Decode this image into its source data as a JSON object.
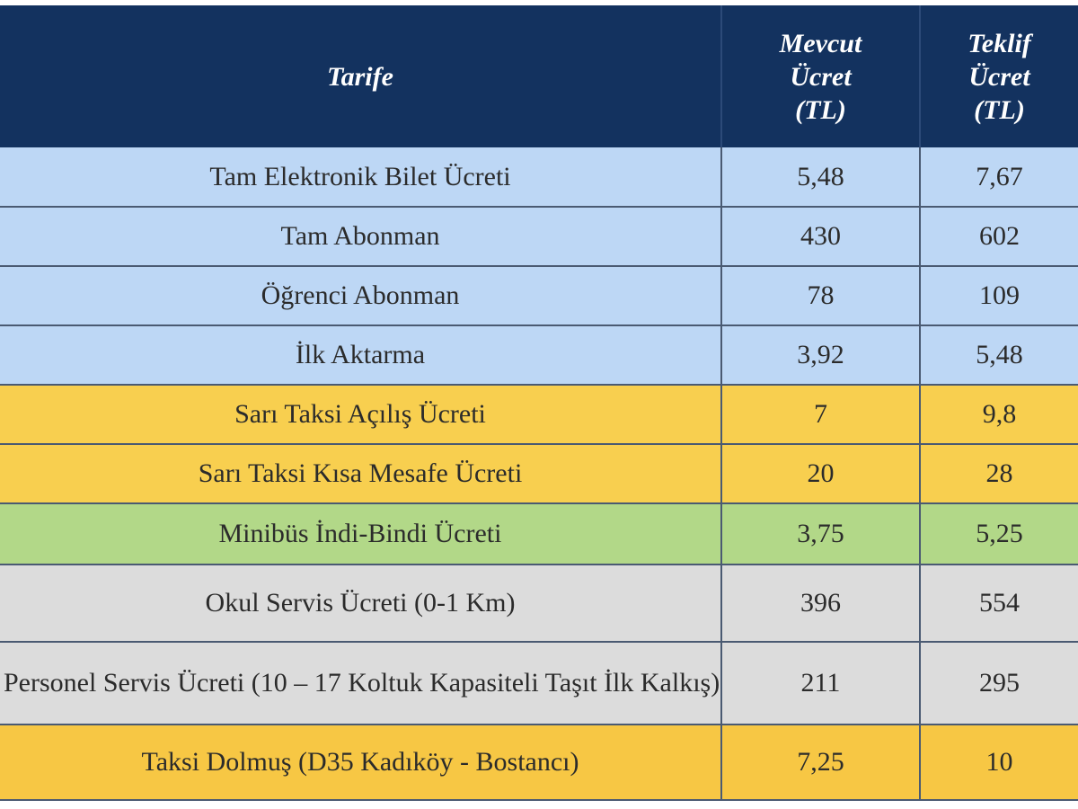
{
  "header": {
    "tariff": "Tarife",
    "current_fee": [
      "Mevcut",
      "Ücret",
      "(TL)"
    ],
    "proposed_fee": [
      "Teklif",
      "Ücret",
      "(TL)"
    ]
  },
  "rows": [
    {
      "name": "Tam Elektronik Bilet Ücreti",
      "current": "5,48",
      "proposed": "7,67",
      "group": "blue"
    },
    {
      "name": "Tam Abonman",
      "current": "430",
      "proposed": "602",
      "group": "blue"
    },
    {
      "name": "Öğrenci Abonman",
      "current": "78",
      "proposed": "109",
      "group": "blue"
    },
    {
      "name": "İlk Aktarma",
      "current": "3,92",
      "proposed": "5,48",
      "group": "blue"
    },
    {
      "name": "Sarı Taksi Açılış Ücreti",
      "current": "7",
      "proposed": "9,8",
      "group": "yellow"
    },
    {
      "name": "Sarı Taksi Kısa Mesafe Ücreti",
      "current": "20",
      "proposed": "28",
      "group": "yellow"
    },
    {
      "name": "Minibüs İndi-Bindi Ücreti",
      "current": "3,75",
      "proposed": "5,25",
      "group": "green"
    },
    {
      "name": "Okul Servis Ücreti (0-1 Km)",
      "current": "396",
      "proposed": "554",
      "group": "gray"
    },
    {
      "name": "Personel Servis Ücreti (10 – 17 Koltuk Kapasiteli Taşıt İlk Kalkış)",
      "current": "211",
      "proposed": "295",
      "group": "gray"
    },
    {
      "name": "Taksi Dolmuş (D35 Kadıköy - Bostancı)",
      "current": "7,25",
      "proposed": "10",
      "group": "orange"
    }
  ],
  "colors": {
    "header_bg": "#13325f",
    "blue": "#bdd7f5",
    "yellow": "#f8cf4f",
    "green": "#b2d888",
    "gray": "#dcdcdc",
    "orange": "#f7c744"
  }
}
